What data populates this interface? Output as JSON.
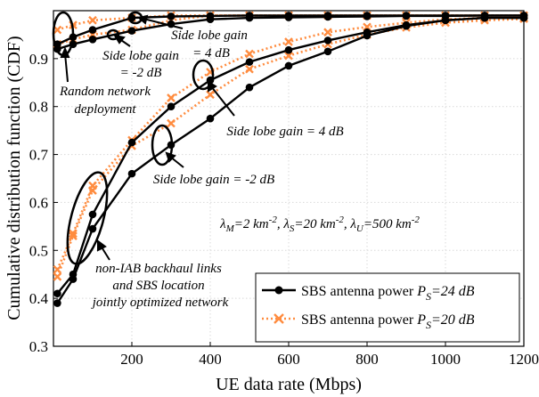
{
  "chart_data": {
    "type": "line",
    "xlabel": "UE data rate (Mbps)",
    "ylabel": "Cumulative distribution function (CDF)",
    "xlim": [
      0,
      1200
    ],
    "ylim": [
      0.3,
      1.0
    ],
    "xticks": [
      "200",
      "400",
      "600",
      "800",
      "1000",
      "1200"
    ],
    "yticks": [
      "0.3",
      "0.4",
      "0.5",
      "0.6",
      "0.7",
      "0.8",
      "0.9"
    ],
    "grid": true,
    "legend_position": "bottom-right",
    "series": [
      {
        "name": "SBS antenna power P_S=24 dB",
        "group": "optimized",
        "color": "#000000",
        "style": "solid-dot",
        "x": [
          10,
          50,
          100,
          200,
          300,
          400,
          500,
          600,
          700,
          800,
          900,
          1000,
          1100,
          1200
        ],
        "y": [
          0.39,
          0.44,
          0.545,
          0.66,
          0.72,
          0.775,
          0.84,
          0.885,
          0.915,
          0.948,
          0.968,
          0.98,
          0.985,
          0.985
        ]
      },
      {
        "name": "SBS antenna power P_S=24 dB",
        "group": "optimized",
        "color": "#000000",
        "style": "solid-dot",
        "x": [
          10,
          50,
          100,
          200,
          300,
          400,
          500,
          600,
          700,
          800,
          900,
          1000,
          1100,
          1200
        ],
        "y": [
          0.41,
          0.45,
          0.575,
          0.725,
          0.8,
          0.855,
          0.893,
          0.918,
          0.938,
          0.955,
          0.97,
          0.98,
          0.985,
          0.985
        ]
      },
      {
        "name": "SBS antenna power P_S=20 dB",
        "group": "optimized",
        "color": "#ff8c3f",
        "style": "dotted-x",
        "x": [
          10,
          50,
          100,
          200,
          300,
          400,
          500,
          600,
          700,
          800,
          900,
          1000,
          1100,
          1200
        ],
        "y": [
          0.445,
          0.53,
          0.625,
          0.718,
          0.765,
          0.825,
          0.878,
          0.906,
          0.93,
          0.95,
          0.965,
          0.975,
          0.98,
          0.983
        ]
      },
      {
        "name": "SBS antenna power P_S=20 dB",
        "group": "optimized",
        "color": "#ff8c3f",
        "style": "dotted-x",
        "x": [
          10,
          50,
          100,
          200,
          300,
          400,
          500,
          600,
          700,
          800,
          900,
          1000,
          1100,
          1200
        ],
        "y": [
          0.46,
          0.535,
          0.635,
          0.73,
          0.818,
          0.872,
          0.91,
          0.935,
          0.955,
          0.966,
          0.975,
          0.982,
          0.985,
          0.985
        ]
      },
      {
        "name": "SBS antenna power P_S=24 dB",
        "group": "random",
        "color": "#000000",
        "style": "solid-dot",
        "x": [
          10,
          50,
          100,
          200,
          300,
          400,
          500,
          600,
          700,
          800,
          900,
          1000,
          1100,
          1200
        ],
        "y": [
          0.92,
          0.93,
          0.94,
          0.958,
          0.972,
          0.982,
          0.985,
          0.986,
          0.987,
          0.988,
          0.989,
          0.989,
          0.99,
          0.99
        ]
      },
      {
        "name": "SBS antenna power P_S=24 dB",
        "group": "random",
        "color": "#000000",
        "style": "solid-dot",
        "x": [
          10,
          50,
          100,
          200,
          300,
          400,
          500,
          600,
          700,
          800,
          900,
          1000,
          1100,
          1200
        ],
        "y": [
          0.93,
          0.945,
          0.96,
          0.985,
          0.988,
          0.989,
          0.99,
          0.99,
          0.99,
          0.99,
          0.99,
          0.99,
          0.99,
          0.99
        ]
      },
      {
        "name": "SBS antenna power P_S=20 dB",
        "group": "random",
        "color": "#ff8c3f",
        "style": "dotted-x",
        "x": [
          10,
          50,
          100,
          200,
          300,
          400,
          500,
          600,
          700,
          800,
          900,
          1000,
          1100,
          1200
        ],
        "y": [
          0.93,
          0.94,
          0.95,
          0.96,
          0.98,
          0.99,
          0.99,
          0.99,
          0.99,
          0.99,
          0.99,
          0.99,
          0.99,
          0.99
        ]
      },
      {
        "name": "SBS antenna power P_S=20 dB",
        "group": "random",
        "color": "#ff8c3f",
        "style": "dotted-x",
        "x": [
          10,
          50,
          100,
          200,
          300,
          400,
          500,
          600,
          700,
          800,
          900,
          1000,
          1100,
          1200
        ],
        "y": [
          0.96,
          0.97,
          0.98,
          0.985,
          0.99,
          0.99,
          0.99,
          0.99,
          0.99,
          0.99,
          0.99,
          0.99,
          0.99,
          0.99
        ]
      }
    ],
    "legend": [
      {
        "label_main": "SBS antenna power ",
        "label_sym": "P",
        "label_sub": "S",
        "label_rest": "=24 dB",
        "color": "#000000",
        "style": "solid-dot"
      },
      {
        "label_main": "SBS antenna power ",
        "label_sym": "P",
        "label_sub": "S",
        "label_rest": "=20 dB",
        "color": "#ff8c3f",
        "style": "dotted-x"
      }
    ],
    "annotations": {
      "random_network_line1": "Random network",
      "random_network_line2": "deployment",
      "side_lobe_neg2_small_line1": "Side lobe gain",
      "side_lobe_neg2_small_line2": "= -2 dB",
      "side_lobe_4_small_line1": "Side lobe gain",
      "side_lobe_4_small_line2": "= 4 dB",
      "side_lobe_4_large": "Side lobe gain = 4 dB",
      "side_lobe_neg2_large": "Side lobe gain = -2 dB",
      "density_lm": "λ",
      "density_lm_sub": "M",
      "density_lm_val": "=2 km",
      "density_exp": "-2",
      "density_sep": ", ",
      "density_ls": "λ",
      "density_ls_sub": "S",
      "density_ls_val": "=20 km",
      "density_lu": "λ",
      "density_lu_sub": "U",
      "density_lu_val": "=500 km",
      "non_iab_line1": "non-IAB backhaul links",
      "non_iab_line2": "and SBS location",
      "non_iab_line3": "jointly optimized network"
    }
  }
}
